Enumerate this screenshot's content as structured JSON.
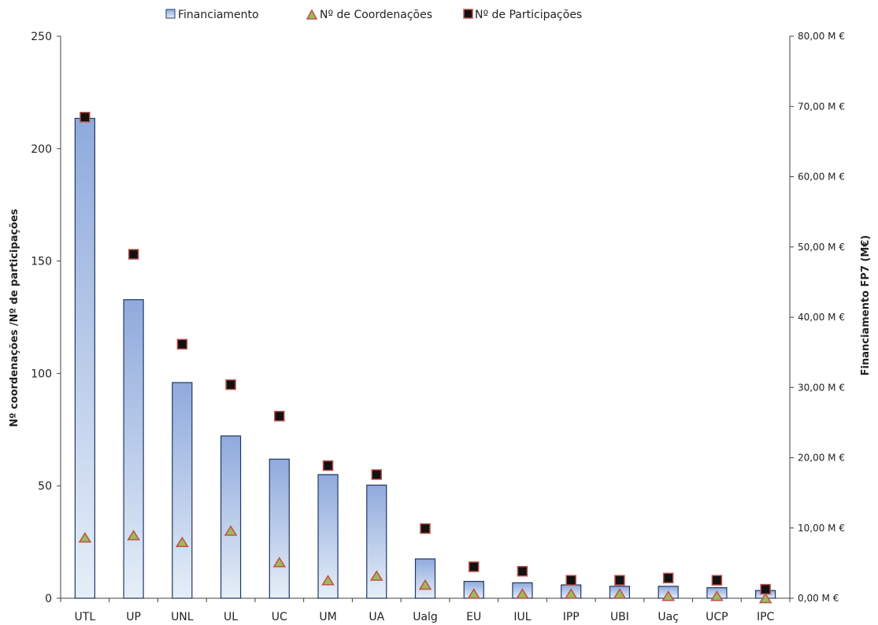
{
  "chart_data": {
    "type": "bar",
    "categories": [
      "UTL",
      "UP",
      "UNL",
      "UL",
      "UC",
      "UM",
      "UA",
      "Ualg",
      "EU",
      "IUL",
      "IPP",
      "UBI",
      "Uaç",
      "UCP",
      "IPC"
    ],
    "series": [
      {
        "name": "Financiamento",
        "axis": "right",
        "type": "bar",
        "values": [
          68.3,
          42.5,
          30.7,
          23.1,
          19.8,
          17.6,
          16.1,
          5.6,
          2.4,
          2.2,
          1.9,
          1.7,
          1.7,
          1.5,
          1.1
        ]
      },
      {
        "name": "Nº de Coordenações",
        "axis": "left",
        "type": "scatter",
        "marker": "triangle",
        "values": [
          27,
          28,
          25,
          30,
          16,
          8,
          10,
          6,
          2,
          2,
          2,
          2,
          1,
          1,
          0
        ]
      },
      {
        "name": "Nº de Participações",
        "axis": "left",
        "type": "scatter",
        "marker": "square",
        "values": [
          214,
          153,
          113,
          95,
          81,
          59,
          55,
          31,
          14,
          12,
          8,
          8,
          9,
          8,
          4
        ]
      }
    ],
    "yleft": {
      "label": "Nº coordenações /Nº de participações",
      "range": [
        0,
        250
      ],
      "ticks": [
        "0",
        "50",
        "100",
        "150",
        "200",
        "250"
      ]
    },
    "yright": {
      "label": "Financiamento FP7 (M€)",
      "range": [
        0,
        80
      ],
      "ticks": [
        "0,00 M €",
        "10,00 M €",
        "20,00 M €",
        "30,00 M €",
        "40,00 M €",
        "50,00 M €",
        "60,00 M €",
        "70,00 M €",
        "80,00 M €"
      ]
    },
    "legend_position": "top",
    "grid": false,
    "colors": {
      "bar_top": "#8faadc",
      "bar_bottom": "#e6eef8",
      "bar_stroke": "#1f3864",
      "triangle_fill": "#9bbb59",
      "triangle_stroke": "#c0504d",
      "square_fill": "#111111",
      "square_stroke": "#c0504d",
      "axis": "#404040"
    }
  }
}
